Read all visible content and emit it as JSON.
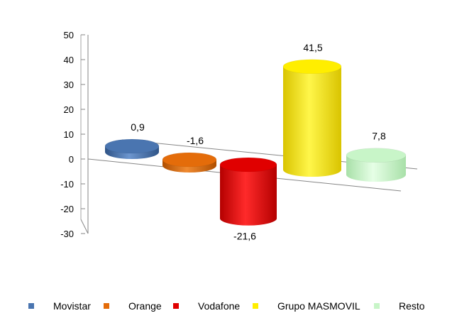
{
  "chart_data": {
    "type": "bar",
    "style": "3d-cylinder",
    "categories": [
      "Movistar",
      "Orange",
      "Vodafone",
      "Grupo MASMOVIL",
      "Resto"
    ],
    "values": [
      0.9,
      -1.6,
      -21.6,
      41.5,
      7.8
    ],
    "value_labels": [
      "0,9",
      "-1,6",
      "-21,6",
      "41,5",
      "7,8"
    ],
    "colors": [
      "#4a75b0",
      "#e46c0a",
      "#e00000",
      "#ffee00",
      "#c8f5c8"
    ],
    "ylim": [
      -30,
      50
    ],
    "yticks": [
      50,
      40,
      30,
      20,
      10,
      0,
      -10,
      -20,
      -30
    ],
    "ytick_labels": [
      "50",
      "40",
      "30",
      "20",
      "10",
      "0",
      "-10",
      "-20",
      "-30"
    ],
    "grid": false,
    "legend_position": "bottom",
    "title": "",
    "xlabel": "",
    "ylabel": ""
  }
}
